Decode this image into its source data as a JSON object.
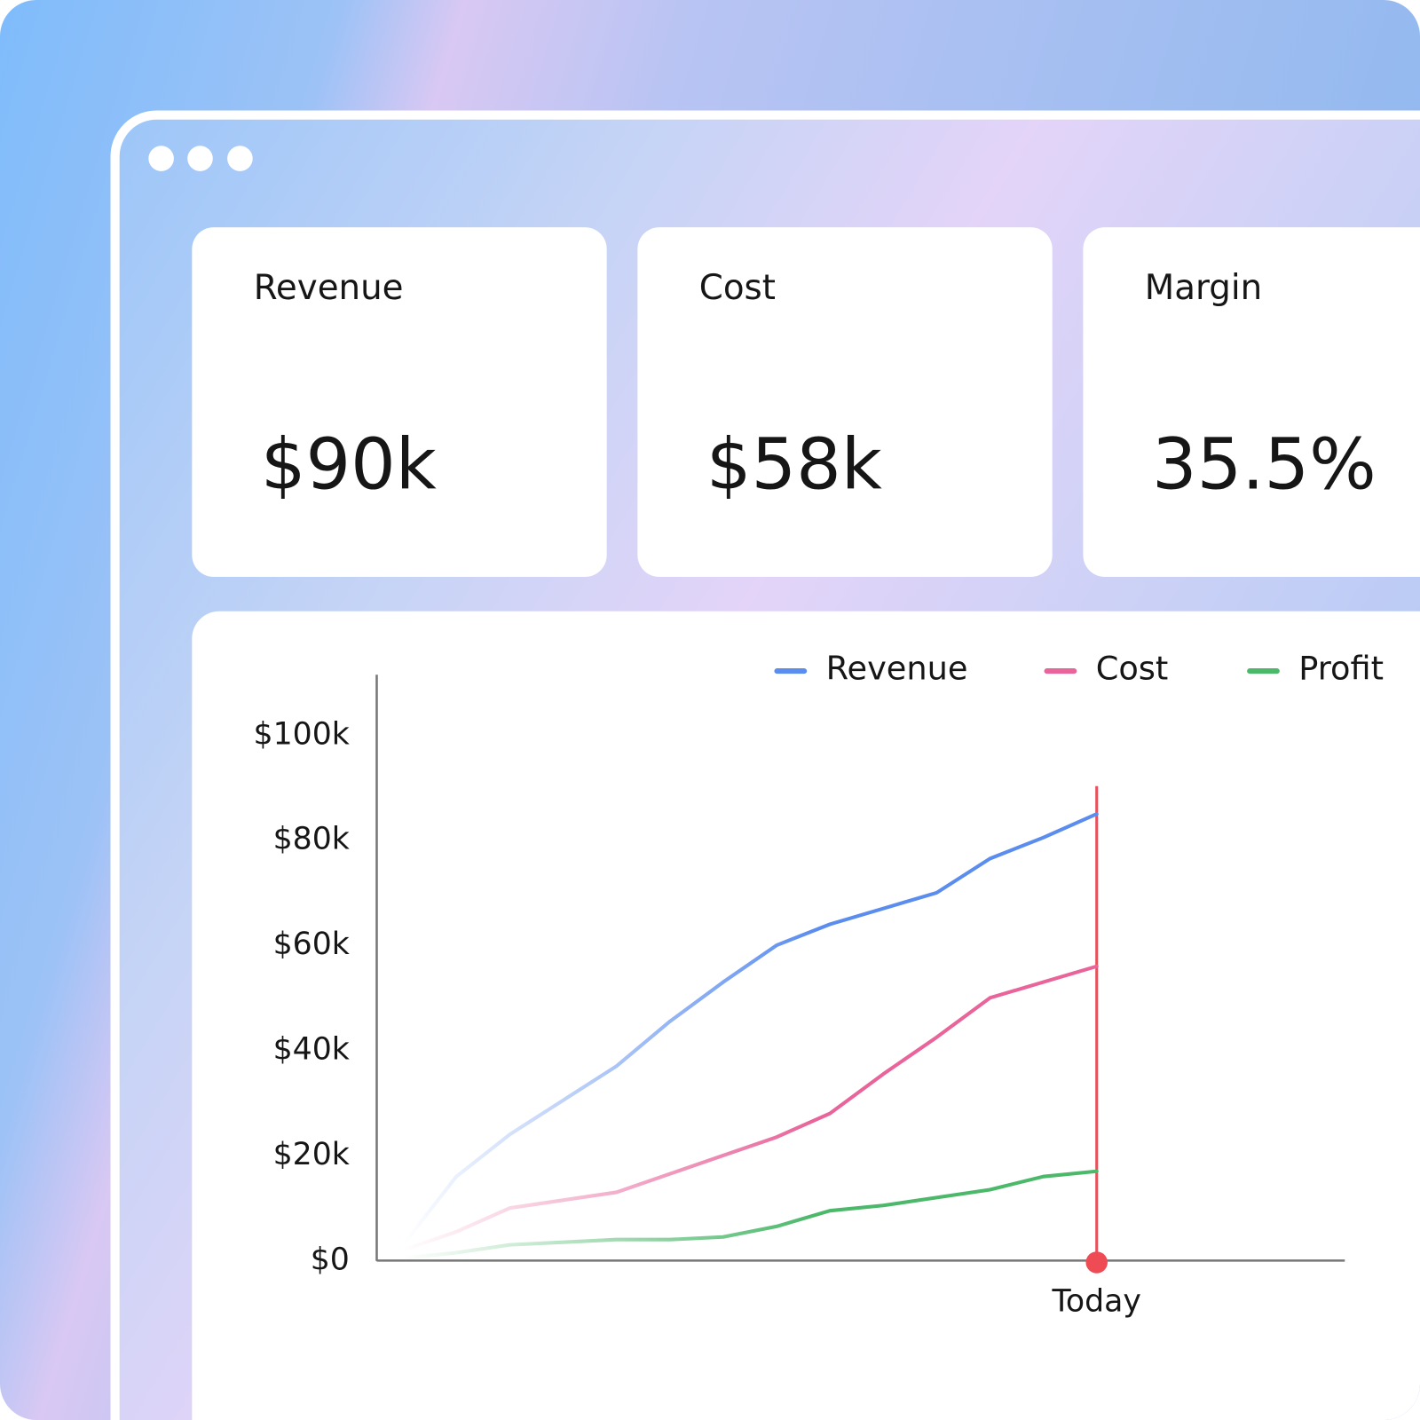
{
  "cards": [
    {
      "label": "Revenue",
      "value": "$90k"
    },
    {
      "label": "Cost",
      "value": "$58k"
    },
    {
      "label": "Margin",
      "value": "35.5%"
    }
  ],
  "chart_data": {
    "type": "line",
    "categories": [
      null,
      null,
      null,
      null,
      null,
      null,
      null,
      null,
      null,
      null,
      null,
      null,
      null,
      "Today"
    ],
    "series": [
      {
        "name": "Revenue",
        "color": "#5b8def",
        "values": [
          3000,
          16000,
          24000,
          30500,
          37000,
          45500,
          53000,
          60000,
          64000,
          67000,
          70000,
          76500,
          80500,
          85000
        ]
      },
      {
        "name": "Cost",
        "color": "#e8649a",
        "values": [
          2000,
          5500,
          10000,
          11500,
          13000,
          16500,
          20000,
          23500,
          28000,
          35500,
          42500,
          50000,
          53000,
          56000
        ]
      },
      {
        "name": "Profit",
        "color": "#4cb86a",
        "values": [
          500,
          1500,
          3000,
          3500,
          4000,
          4000,
          4500,
          6500,
          9500,
          10500,
          12000,
          13500,
          16000,
          17000
        ]
      }
    ],
    "ylim": [
      0,
      111500
    ],
    "yticks": [
      {
        "value": 0,
        "label": "$0"
      },
      {
        "value": 20000,
        "label": "$20k"
      },
      {
        "value": 40000,
        "label": "$40k"
      },
      {
        "value": 60000,
        "label": "$60k"
      },
      {
        "value": 80000,
        "label": "$80k"
      },
      {
        "value": 100000,
        "label": "$100k"
      }
    ],
    "legend": "top-right"
  }
}
